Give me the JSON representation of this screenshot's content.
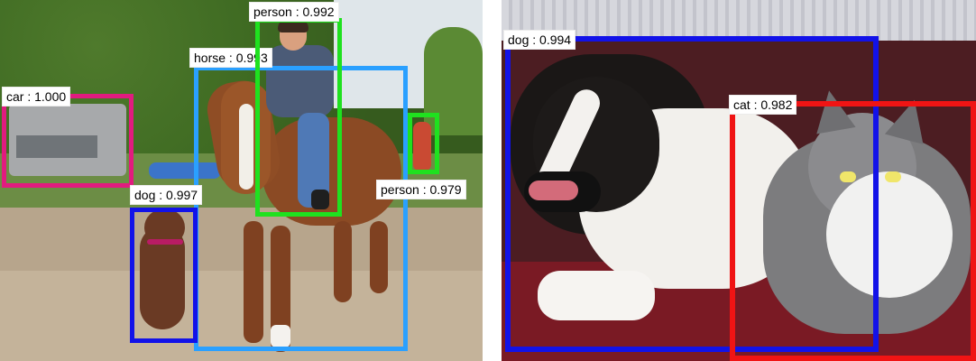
{
  "panels": [
    {
      "detections": [
        {
          "label": "car",
          "score_text": "car : 1.000",
          "color": "#e11b7f"
        },
        {
          "label": "horse",
          "score_text": "horse : 0.993",
          "color": "#2aa0ff"
        },
        {
          "label": "person",
          "score_text": "person : 0.992",
          "color": "#1fe11f"
        },
        {
          "label": "dog",
          "score_text": "dog : 0.997",
          "color": "#1212e8"
        },
        {
          "label": "person",
          "score_text": "person : 0.979",
          "color": "#1fe11f"
        }
      ]
    },
    {
      "detections": [
        {
          "label": "dog",
          "score_text": "dog : 0.994",
          "color": "#1212e8"
        },
        {
          "label": "cat",
          "score_text": "cat : 0.982",
          "color": "#f01414"
        }
      ]
    }
  ]
}
